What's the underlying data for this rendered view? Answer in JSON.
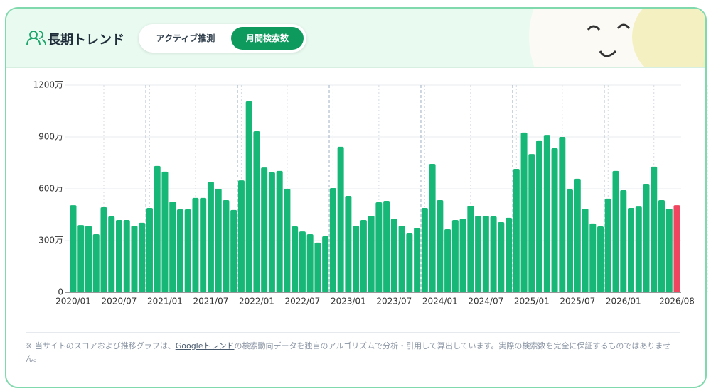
{
  "header": {
    "title": "長期トレンド",
    "tabs": [
      "アクティブ推測",
      "月間検索数"
    ]
  },
  "chart_data": {
    "type": "bar",
    "categories": [
      "2020/01",
      null,
      null,
      null,
      null,
      null,
      "2020/07",
      null,
      null,
      null,
      null,
      null,
      "2021/01",
      null,
      null,
      null,
      null,
      null,
      "2021/07",
      null,
      null,
      null,
      null,
      null,
      "2022/01",
      null,
      null,
      null,
      null,
      null,
      "2022/07",
      null,
      null,
      null,
      null,
      null,
      "2023/01",
      null,
      null,
      null,
      null,
      null,
      "2023/07",
      null,
      null,
      null,
      null,
      null,
      "2024/01",
      null,
      null,
      null,
      null,
      null,
      "2024/07",
      null,
      null,
      null,
      null,
      null,
      "2025/01",
      null,
      null,
      null,
      null,
      null,
      "2025/07",
      null,
      null,
      null,
      null,
      null,
      "2026/01",
      null,
      null,
      null,
      null,
      null,
      null,
      "2026/08"
    ],
    "values": [
      505,
      390,
      386,
      337,
      493,
      440,
      419,
      419,
      386,
      403,
      489,
      732,
      699,
      526,
      481,
      481,
      547,
      547,
      641,
      600,
      534,
      477,
      649,
      1106,
      933,
      723,
      695,
      703,
      600,
      382,
      353,
      337,
      288,
      325,
      604,
      843,
      559,
      386,
      419,
      444,
      522,
      530,
      427,
      386,
      341,
      374,
      489,
      744,
      534,
      366,
      419,
      427,
      501,
      444,
      444,
      440,
      407,
      432,
      715,
      925,
      801,
      880,
      912,
      834,
      900,
      596,
      658,
      485,
      399,
      382,
      543,
      703,
      592,
      489,
      497,
      629,
      728,
      534,
      485,
      505
    ],
    "color": "#17b877",
    "latest_color": "#f0465f",
    "ylim": [
      0,
      1200
    ],
    "yticks": [
      0,
      {
        "value": 300,
        "label": "300万"
      },
      {
        "value": 600,
        "label": "600万"
      },
      {
        "value": 900,
        "label": "900万"
      },
      {
        "value": 1200,
        "label": "1200万"
      }
    ],
    "grid": true
  },
  "note": {
    "before": "※ 当サイトのスコアおよび推移グラフは、",
    "link": "Googleトレンド",
    "after": "の検索動向データを独自のアルゴリズムで分析・引用して算出しています。実際の検索数を完全に保証するものではありません。"
  }
}
